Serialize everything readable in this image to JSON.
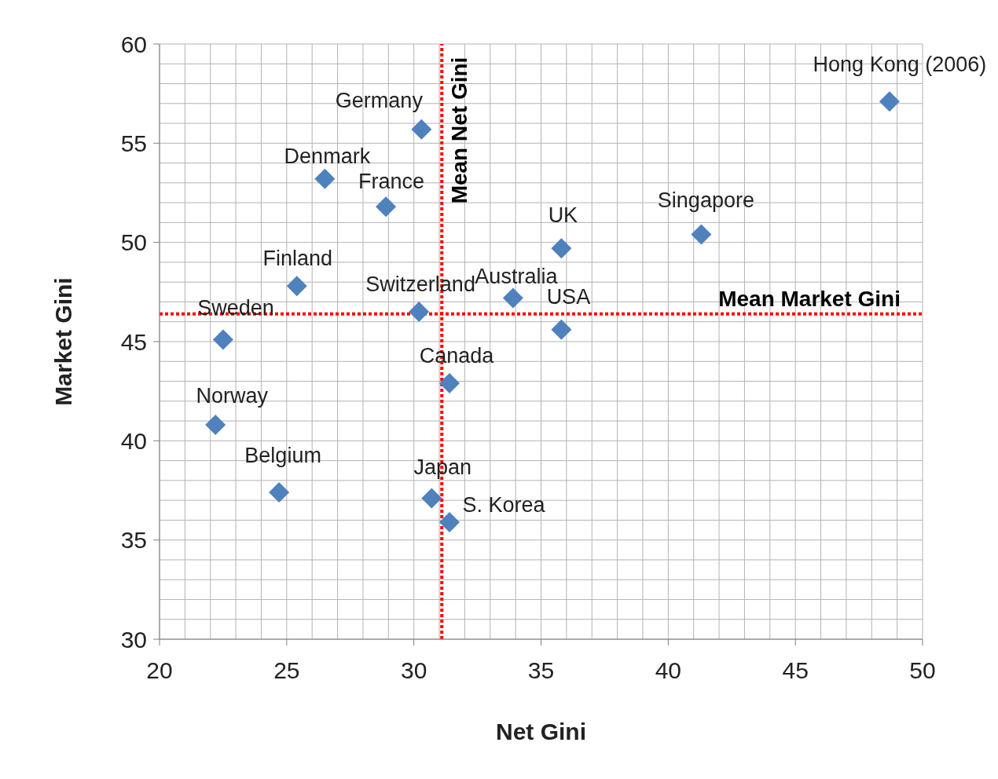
{
  "chart_data": {
    "type": "scatter",
    "xlabel": "Net Gini",
    "ylabel": "Market Gini",
    "xlim": [
      20,
      50
    ],
    "ylim": [
      30,
      60
    ],
    "xticks": [
      20,
      {
        "value": 21,
        "label": null
      },
      {
        "value": 22,
        "label": null
      },
      {
        "value": 23,
        "label": null
      },
      {
        "value": 24,
        "label": null
      },
      25,
      {
        "value": 26,
        "label": null
      },
      {
        "value": 27,
        "label": null
      },
      {
        "value": 28,
        "label": null
      },
      {
        "value": 29,
        "label": null
      },
      30,
      {
        "value": 31,
        "label": null
      },
      {
        "value": 32,
        "label": null
      },
      {
        "value": 33,
        "label": null
      },
      {
        "value": 34,
        "label": null
      },
      35,
      {
        "value": 36,
        "label": null
      },
      {
        "value": 37,
        "label": null
      },
      {
        "value": 38,
        "label": null
      },
      {
        "value": 39,
        "label": null
      },
      40,
      {
        "value": 41,
        "label": null
      },
      {
        "value": 42,
        "label": null
      },
      {
        "value": 43,
        "label": null
      },
      {
        "value": 44,
        "label": null
      },
      45,
      {
        "value": 46,
        "label": null
      },
      {
        "value": 47,
        "label": null
      },
      {
        "value": 48,
        "label": null
      },
      {
        "value": 49,
        "label": null
      },
      50
    ],
    "yticks": [
      30,
      {
        "value": 31,
        "label": null
      },
      {
        "value": 32,
        "label": null
      },
      {
        "value": 33,
        "label": null
      },
      {
        "value": 34,
        "label": null
      },
      35,
      {
        "value": 36,
        "label": null
      },
      {
        "value": 37,
        "label": null
      },
      {
        "value": 38,
        "label": null
      },
      {
        "value": 39,
        "label": null
      },
      40,
      {
        "value": 41,
        "label": null
      },
      {
        "value": 42,
        "label": null
      },
      {
        "value": 43,
        "label": null
      },
      {
        "value": 44,
        "label": null
      },
      45,
      {
        "value": 46,
        "label": null
      },
      {
        "value": 47,
        "label": null
      },
      {
        "value": 48,
        "label": null
      },
      {
        "value": 49,
        "label": null
      },
      50,
      {
        "value": 51,
        "label": null
      },
      {
        "value": 52,
        "label": null
      },
      {
        "value": 53,
        "label": null
      },
      {
        "value": 54,
        "label": null
      },
      55,
      {
        "value": 56,
        "label": null
      },
      {
        "value": 57,
        "label": null
      },
      {
        "value": 58,
        "label": null
      },
      {
        "value": 59,
        "label": null
      },
      60
    ],
    "grid": true,
    "marker": "diamond",
    "legend": false,
    "ref_lines": [
      {
        "axis": "x",
        "value": 31.1,
        "label": "Mean Net Gini",
        "color": "#ff0000",
        "line_style": "dotted"
      },
      {
        "axis": "y",
        "value": 46.4,
        "label": "Mean Market Gini",
        "color": "#ff0000",
        "line_style": "dotted"
      }
    ],
    "series": [
      {
        "name": "Hong Kong (2006)",
        "color": "#4f81bd",
        "x": [
          48.7
        ],
        "values": [
          57.1
        ]
      },
      {
        "name": "Germany",
        "color": "#4f81bd",
        "x": [
          30.3
        ],
        "values": [
          55.7
        ]
      },
      {
        "name": "Denmark",
        "color": "#4f81bd",
        "x": [
          26.5
        ],
        "values": [
          53.2
        ]
      },
      {
        "name": "France",
        "color": "#4f81bd",
        "x": [
          28.9
        ],
        "values": [
          51.8
        ]
      },
      {
        "name": "Singapore",
        "color": "#4f81bd",
        "x": [
          41.3
        ],
        "values": [
          50.4
        ]
      },
      {
        "name": "UK",
        "color": "#4f81bd",
        "x": [
          35.8
        ],
        "values": [
          49.7
        ]
      },
      {
        "name": "Finland",
        "color": "#4f81bd",
        "x": [
          25.4
        ],
        "values": [
          47.8
        ]
      },
      {
        "name": "Australia",
        "color": "#4f81bd",
        "x": [
          33.9
        ],
        "values": [
          47.2
        ]
      },
      {
        "name": "Switzerland",
        "color": "#4f81bd",
        "x": [
          30.2
        ],
        "values": [
          46.5
        ]
      },
      {
        "name": "Sweden",
        "color": "#4f81bd",
        "x": [
          22.5
        ],
        "values": [
          45.1
        ]
      },
      {
        "name": "USA",
        "color": "#4f81bd",
        "x": [
          35.8
        ],
        "values": [
          45.6
        ]
      },
      {
        "name": "Canada",
        "color": "#4f81bd",
        "x": [
          31.4
        ],
        "values": [
          42.9
        ]
      },
      {
        "name": "Norway",
        "color": "#4f81bd",
        "x": [
          22.2
        ],
        "values": [
          40.8
        ]
      },
      {
        "name": "Belgium",
        "color": "#4f81bd",
        "x": [
          24.7
        ],
        "values": [
          37.4
        ]
      },
      {
        "name": "Japan",
        "color": "#4f81bd",
        "x": [
          30.7
        ],
        "values": [
          37.1
        ]
      },
      {
        "name": "S. Korea",
        "color": "#4f81bd",
        "x": [
          31.4
        ],
        "values": [
          35.9
        ]
      }
    ]
  }
}
